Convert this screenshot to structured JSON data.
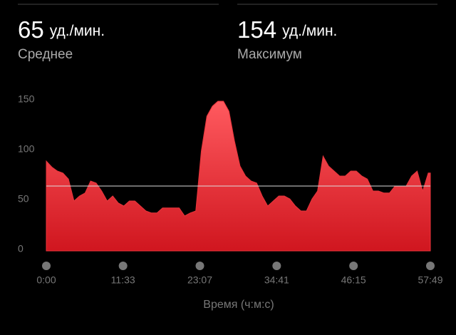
{
  "stats": [
    {
      "value": 65,
      "unit": "уд./мин.",
      "label": "Среднее"
    },
    {
      "value": 154,
      "unit": "уд./мин.",
      "label": "Максимум"
    }
  ],
  "chart_data": {
    "type": "area",
    "x_label": "Время (ч:м:с)",
    "color": "#e8353c",
    "x": [
      0,
      50,
      100,
      150,
      200,
      250,
      300,
      350,
      400,
      450,
      500,
      550,
      600,
      650,
      700,
      750,
      800,
      850,
      900,
      950,
      1000,
      1050,
      1100,
      1150,
      1200,
      1250,
      1300,
      1350,
      1400,
      1450,
      1500,
      1550,
      1600,
      1650,
      1700,
      1750,
      1800,
      1850,
      1900,
      1950,
      2000,
      2050,
      2100,
      2150,
      2200,
      2250,
      2300,
      2350,
      2400,
      2450,
      2500,
      2550,
      2600,
      2650,
      2700,
      2750,
      2800,
      2850,
      2900,
      2950,
      3000,
      3050,
      3100,
      3150,
      3200,
      3250,
      3300,
      3350,
      3400,
      3450,
      3469
    ],
    "values": [
      90,
      84,
      80,
      78,
      72,
      50,
      55,
      58,
      70,
      68,
      60,
      50,
      55,
      48,
      45,
      50,
      50,
      45,
      40,
      38,
      38,
      43,
      43,
      43,
      43,
      35,
      38,
      40,
      100,
      135,
      145,
      150,
      150,
      140,
      110,
      85,
      75,
      70,
      68,
      55,
      45,
      50,
      55,
      55,
      52,
      45,
      40,
      40,
      52,
      60,
      95,
      85,
      80,
      75,
      75,
      80,
      80,
      75,
      72,
      60,
      60,
      58,
      58,
      65,
      65,
      65,
      75,
      80,
      60,
      78,
      78
    ],
    "xlim": [
      0,
      3469
    ],
    "ylim": [
      0,
      160
    ],
    "xticks": [
      {
        "value": 0,
        "label": "0:00"
      },
      {
        "value": 693,
        "label": "11:33"
      },
      {
        "value": 1387,
        "label": "23:07"
      },
      {
        "value": 2081,
        "label": "34:41"
      },
      {
        "value": 2775,
        "label": "46:15"
      },
      {
        "value": 3469,
        "label": "57:49"
      }
    ],
    "yticks": [
      0,
      50,
      100,
      150
    ]
  }
}
